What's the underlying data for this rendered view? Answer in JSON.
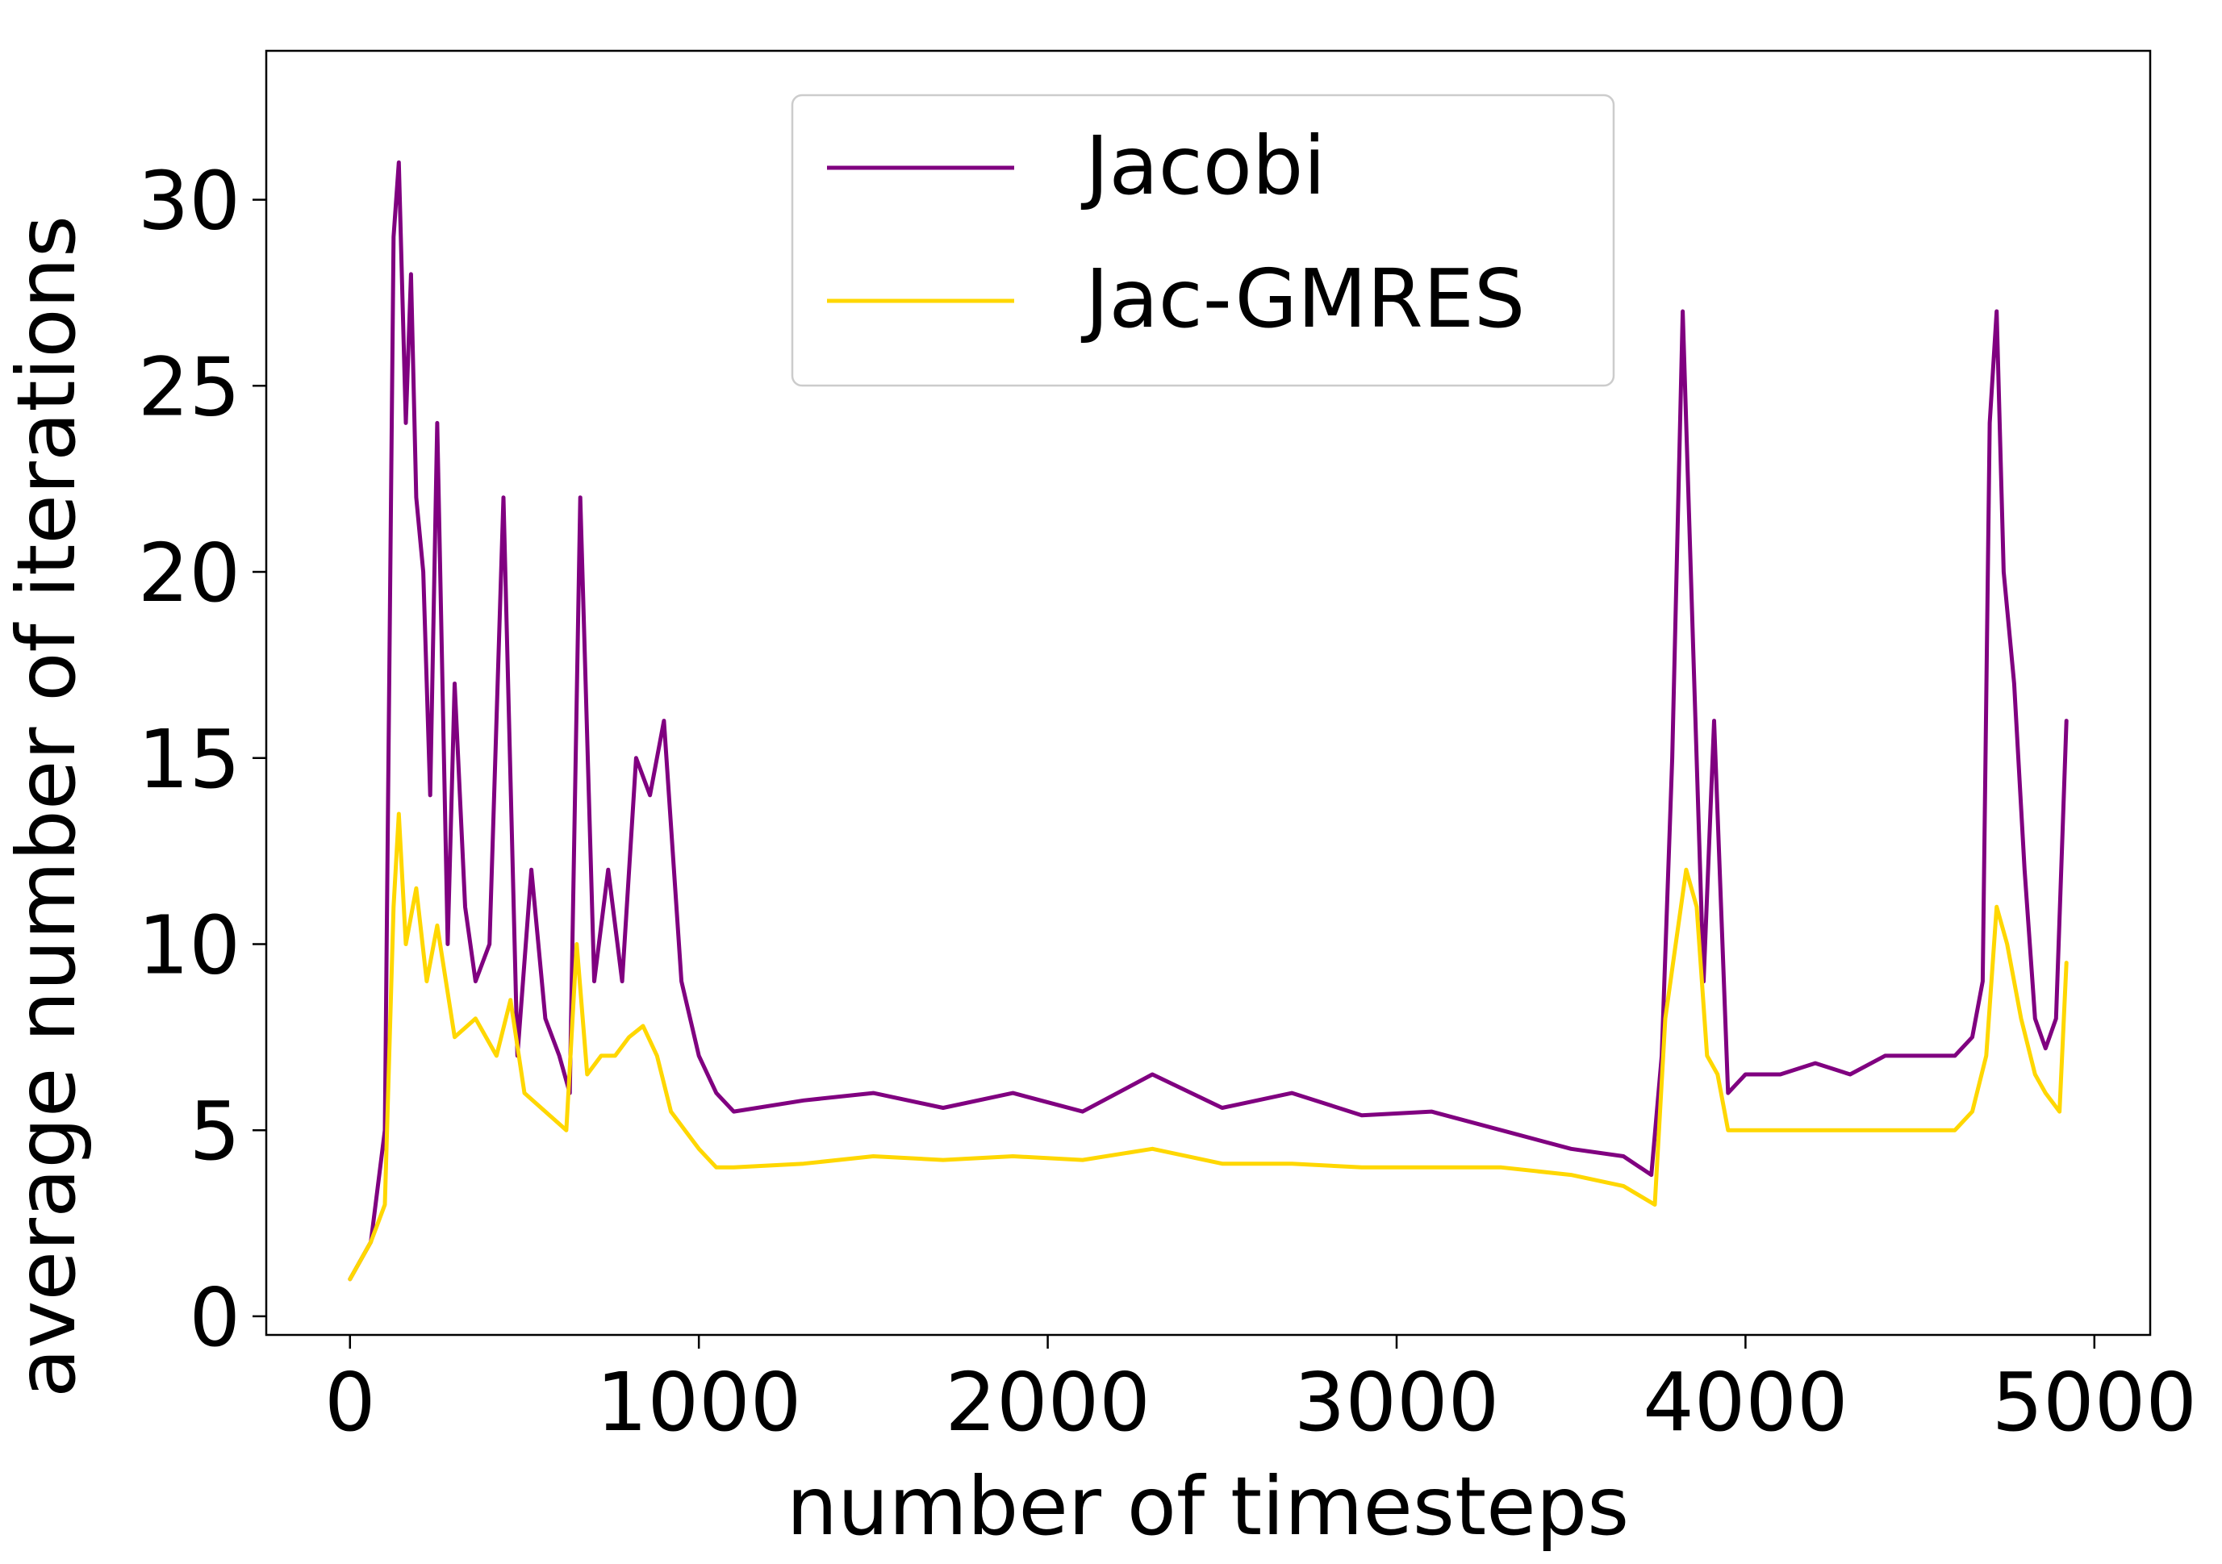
{
  "chart_data": {
    "type": "line",
    "title": "",
    "xlabel": "number of timesteps",
    "ylabel": "average number of iterations",
    "xlim": [
      -240,
      5160
    ],
    "ylim": [
      -0.5,
      34.0
    ],
    "xticks": [
      0,
      1000,
      2000,
      3000,
      4000,
      5000
    ],
    "yticks": [
      0,
      5,
      10,
      15,
      20,
      25,
      30
    ],
    "grid": false,
    "legend_position": "top-center",
    "series": [
      {
        "name": "Jacobi",
        "color": "#800080",
        "x": [
          0,
          60,
          100,
          125,
          140,
          160,
          175,
          190,
          210,
          230,
          250,
          280,
          300,
          330,
          360,
          400,
          440,
          480,
          520,
          560,
          600,
          630,
          660,
          700,
          740,
          780,
          820,
          860,
          900,
          950,
          1000,
          1050,
          1100,
          1300,
          1500,
          1700,
          1900,
          2100,
          2300,
          2500,
          2700,
          2900,
          3100,
          3300,
          3500,
          3650,
          3730,
          3760,
          3790,
          3820,
          3850,
          3880,
          3910,
          3950,
          4000,
          4100,
          4200,
          4300,
          4400,
          4500,
          4600,
          4650,
          4680,
          4700,
          4720,
          4740,
          4770,
          4800,
          4830,
          4860,
          4890,
          4920
        ],
        "values": [
          1,
          2,
          5,
          29,
          31,
          24,
          28,
          22,
          20,
          14,
          24,
          10,
          17,
          11,
          9,
          10,
          22,
          7,
          12,
          8,
          7,
          6,
          22,
          9,
          12,
          9,
          15,
          14,
          16,
          9,
          7,
          6,
          5.5,
          5.8,
          6,
          5.6,
          6,
          5.5,
          6.5,
          5.6,
          6,
          5.4,
          5.5,
          5,
          4.5,
          4.3,
          3.8,
          7,
          15,
          27,
          18,
          9,
          16,
          6,
          6.5,
          6.5,
          6.8,
          6.5,
          7,
          7,
          7,
          7.5,
          9,
          24,
          27,
          20,
          17,
          12,
          8,
          7.2,
          8,
          16
        ]
      },
      {
        "name": "Jac-GMRES",
        "color": "#FFD700",
        "x": [
          0,
          60,
          100,
          125,
          140,
          160,
          190,
          220,
          250,
          300,
          360,
          420,
          460,
          500,
          560,
          620,
          650,
          680,
          720,
          760,
          800,
          840,
          880,
          920,
          960,
          1000,
          1050,
          1100,
          1300,
          1500,
          1700,
          1900,
          2100,
          2300,
          2500,
          2700,
          2900,
          3100,
          3300,
          3500,
          3650,
          3740,
          3770,
          3800,
          3830,
          3860,
          3890,
          3920,
          3950,
          4000,
          4200,
          4400,
          4600,
          4650,
          4690,
          4720,
          4750,
          4790,
          4830,
          4860,
          4900,
          4920
        ],
        "values": [
          1,
          2,
          3,
          11,
          13.5,
          10,
          11.5,
          9,
          10.5,
          7.5,
          8,
          7,
          8.5,
          6,
          5.5,
          5,
          10,
          6.5,
          7,
          7,
          7.5,
          7.8,
          7,
          5.5,
          5,
          4.5,
          4,
          4,
          4.1,
          4.3,
          4.2,
          4.3,
          4.2,
          4.5,
          4.1,
          4.1,
          4,
          4,
          4,
          3.8,
          3.5,
          3,
          8,
          10,
          12,
          11,
          7,
          6.5,
          5,
          5,
          5,
          5,
          5,
          5.5,
          7,
          11,
          10,
          8,
          6.5,
          6,
          5.5,
          9.5
        ]
      }
    ]
  }
}
